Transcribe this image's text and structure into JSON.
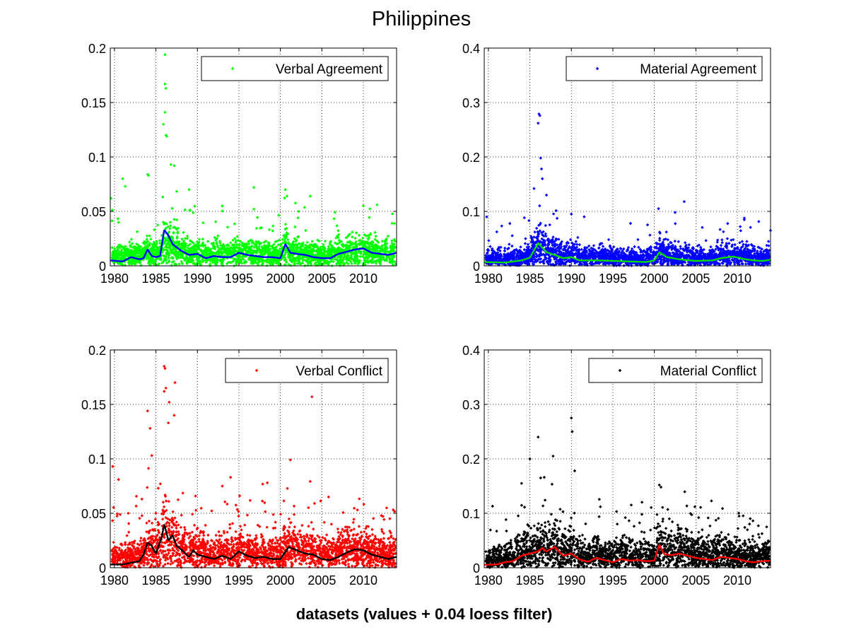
{
  "figure": {
    "title": "Philippines",
    "xlabel": "datasets (values + 0.04 loess filter)"
  },
  "chart_data": [
    {
      "type": "scatter",
      "legend": "Verbal Agreement",
      "legend_location": "top-right",
      "grid": true,
      "xlim": [
        1979.5,
        2014
      ],
      "ylim": [
        0,
        0.2
      ],
      "xticks": [
        "1980",
        "1985",
        "1990",
        "1995",
        "2000",
        "2005",
        "2010"
      ],
      "yticks": [
        "0",
        "0.05",
        "0.1",
        "0.15",
        "0.2"
      ],
      "point_color": "#00ff00",
      "trend_color": "#0000ff",
      "noise": {
        "base": 0.008,
        "spread": 0.012,
        "spike_rate": 0.03,
        "spike_scale": 0.035
      },
      "trend": [
        [
          1979.5,
          0.005
        ],
        [
          1981,
          0.004
        ],
        [
          1982,
          0.008
        ],
        [
          1983,
          0.006
        ],
        [
          1983.5,
          0.007
        ],
        [
          1984,
          0.015
        ],
        [
          1984.5,
          0.009
        ],
        [
          1985,
          0.008
        ],
        [
          1985.5,
          0.009
        ],
        [
          1986,
          0.033
        ],
        [
          1986.5,
          0.028
        ],
        [
          1987,
          0.02
        ],
        [
          1988,
          0.014
        ],
        [
          1989,
          0.01
        ],
        [
          1990,
          0.011
        ],
        [
          1991,
          0.007
        ],
        [
          1992,
          0.009
        ],
        [
          1993,
          0.008
        ],
        [
          1994,
          0.008
        ],
        [
          1995,
          0.012
        ],
        [
          1996,
          0.01
        ],
        [
          1997,
          0.009
        ],
        [
          1998,
          0.008
        ],
        [
          1999,
          0.008
        ],
        [
          2000,
          0.007
        ],
        [
          2000.6,
          0.02
        ],
        [
          2001.2,
          0.012
        ],
        [
          2002,
          0.011
        ],
        [
          2003,
          0.01
        ],
        [
          2004,
          0.008
        ],
        [
          2005,
          0.007
        ],
        [
          2006,
          0.007
        ],
        [
          2007,
          0.011
        ],
        [
          2008,
          0.013
        ],
        [
          2009,
          0.015
        ],
        [
          2010,
          0.016
        ],
        [
          2011,
          0.012
        ],
        [
          2012,
          0.011
        ],
        [
          2013,
          0.01
        ],
        [
          2014,
          0.012
        ]
      ],
      "outliers": [
        [
          1986.1,
          0.194
        ],
        [
          1986.1,
          0.167
        ],
        [
          1986.2,
          0.163
        ],
        [
          1986.1,
          0.141
        ],
        [
          1986.2,
          0.12
        ],
        [
          1986.3,
          0.119
        ],
        [
          1985.9,
          0.13
        ],
        [
          1986.8,
          0.093
        ],
        [
          1987.2,
          0.092
        ],
        [
          1984.0,
          0.084
        ],
        [
          1984.1,
          0.083
        ],
        [
          1981.0,
          0.08
        ],
        [
          1981.3,
          0.073
        ],
        [
          1989.0,
          0.07
        ],
        [
          1996.8,
          0.072
        ],
        [
          2000.6,
          0.07
        ],
        [
          2003.6,
          0.064
        ],
        [
          2010.0,
          0.055
        ],
        [
          1979.6,
          0.062
        ],
        [
          1993.0,
          0.055
        ],
        [
          2000.8,
          0.064
        ]
      ]
    },
    {
      "type": "scatter",
      "legend": "Material Agreement",
      "legend_location": "top-right",
      "grid": true,
      "xlim": [
        1979.5,
        2014
      ],
      "ylim": [
        0,
        0.4
      ],
      "xticks": [
        "1980",
        "1985",
        "1990",
        "1995",
        "2000",
        "2005",
        "2010"
      ],
      "yticks": [
        "0",
        "0.1",
        "0.2",
        "0.3",
        "0.4"
      ],
      "point_color": "#0000ff",
      "trend_color": "#00dd00",
      "noise": {
        "base": 0.01,
        "spread": 0.025,
        "spike_rate": 0.03,
        "spike_scale": 0.05
      },
      "trend": [
        [
          1979.5,
          0.007
        ],
        [
          1982,
          0.006
        ],
        [
          1984,
          0.01
        ],
        [
          1985,
          0.015
        ],
        [
          1986,
          0.042
        ],
        [
          1987,
          0.025
        ],
        [
          1988,
          0.02
        ],
        [
          1989,
          0.014
        ],
        [
          1990,
          0.016
        ],
        [
          1991,
          0.01
        ],
        [
          1993,
          0.01
        ],
        [
          1995,
          0.009
        ],
        [
          1997,
          0.008
        ],
        [
          1999,
          0.007
        ],
        [
          2000,
          0.01
        ],
        [
          2000.6,
          0.025
        ],
        [
          2001.5,
          0.016
        ],
        [
          2003,
          0.012
        ],
        [
          2005,
          0.009
        ],
        [
          2007,
          0.01
        ],
        [
          2008,
          0.014
        ],
        [
          2009.5,
          0.017
        ],
        [
          2011,
          0.012
        ],
        [
          2012,
          0.01
        ],
        [
          2013,
          0.009
        ],
        [
          2014,
          0.011
        ]
      ],
      "outliers": [
        [
          1986.1,
          0.279
        ],
        [
          1986.2,
          0.276
        ],
        [
          1986.0,
          0.262
        ],
        [
          1986.3,
          0.198
        ],
        [
          1986.4,
          0.178
        ],
        [
          1986.5,
          0.16
        ],
        [
          1985.5,
          0.142
        ],
        [
          1987.0,
          0.13
        ],
        [
          1990.0,
          0.095
        ],
        [
          2000.5,
          0.105
        ],
        [
          2002.5,
          0.098
        ],
        [
          2003.6,
          0.118
        ],
        [
          2014,
          0.065
        ],
        [
          1979.8,
          0.09
        ]
      ]
    },
    {
      "type": "scatter",
      "legend": "Verbal Conflict",
      "legend_location": "top-right",
      "grid": true,
      "xlim": [
        1979.5,
        2014
      ],
      "ylim": [
        0,
        0.2
      ],
      "xticks": [
        "1980",
        "1985",
        "1990",
        "1995",
        "2000",
        "2005",
        "2010"
      ],
      "yticks": [
        "0",
        "0.05",
        "0.1",
        "0.15",
        "0.2"
      ],
      "point_color": "#ff0000",
      "trend_color": "#000000",
      "noise": {
        "base": 0.01,
        "spread": 0.018,
        "spike_rate": 0.05,
        "spike_scale": 0.04
      },
      "trend": [
        [
          1979.5,
          0.003
        ],
        [
          1981,
          0.003
        ],
        [
          1983,
          0.006
        ],
        [
          1983.5,
          0.012
        ],
        [
          1984,
          0.023
        ],
        [
          1984.5,
          0.02
        ],
        [
          1985,
          0.013
        ],
        [
          1985.7,
          0.028
        ],
        [
          1986,
          0.04
        ],
        [
          1986.5,
          0.025
        ],
        [
          1987,
          0.03
        ],
        [
          1987.5,
          0.02
        ],
        [
          1988,
          0.017
        ],
        [
          1989,
          0.01
        ],
        [
          1989.5,
          0.016
        ],
        [
          1990,
          0.012
        ],
        [
          1991,
          0.01
        ],
        [
          1992,
          0.008
        ],
        [
          1993,
          0.011
        ],
        [
          1994,
          0.008
        ],
        [
          1995,
          0.015
        ],
        [
          1996,
          0.011
        ],
        [
          1997,
          0.009
        ],
        [
          1998,
          0.01
        ],
        [
          1999,
          0.008
        ],
        [
          2000,
          0.008
        ],
        [
          2001,
          0.019
        ],
        [
          2002,
          0.016
        ],
        [
          2003,
          0.013
        ],
        [
          2004,
          0.012
        ],
        [
          2005,
          0.008
        ],
        [
          2006,
          0.007
        ],
        [
          2007,
          0.01
        ],
        [
          2008,
          0.014
        ],
        [
          2009,
          0.017
        ],
        [
          2010,
          0.016
        ],
        [
          2011,
          0.012
        ],
        [
          2012,
          0.01
        ],
        [
          2013,
          0.008
        ],
        [
          2014,
          0.01
        ]
      ],
      "outliers": [
        [
          1986.0,
          0.185
        ],
        [
          1986.1,
          0.183
        ],
        [
          1986.2,
          0.165
        ],
        [
          1986.0,
          0.162
        ],
        [
          1987.3,
          0.17
        ],
        [
          1986.6,
          0.152
        ],
        [
          1984.0,
          0.144
        ],
        [
          1984.3,
          0.128
        ],
        [
          1986.5,
          0.133
        ],
        [
          1987.2,
          0.14
        ],
        [
          1984.5,
          0.103
        ],
        [
          2003.8,
          0.157
        ],
        [
          2001.2,
          0.099
        ],
        [
          1979.8,
          0.093
        ],
        [
          1980.5,
          0.081
        ],
        [
          1994.0,
          0.083
        ],
        [
          1993.0,
          0.075
        ]
      ]
    },
    {
      "type": "scatter",
      "legend": "Material Conflict",
      "legend_location": "top-right",
      "grid": true,
      "xlim": [
        1979.5,
        2014
      ],
      "ylim": [
        0,
        0.4
      ],
      "xticks": [
        "1980",
        "1985",
        "1990",
        "1995",
        "2000",
        "2005",
        "2010"
      ],
      "yticks": [
        "0",
        "0.1",
        "0.2",
        "0.3",
        "0.4"
      ],
      "point_color": "#000000",
      "trend_color": "#ff0000",
      "noise": {
        "base": 0.012,
        "spread": 0.035,
        "spike_rate": 0.04,
        "spike_scale": 0.06
      },
      "trend": [
        [
          1979.5,
          0.005
        ],
        [
          1981,
          0.006
        ],
        [
          1982,
          0.01
        ],
        [
          1983,
          0.012
        ],
        [
          1984,
          0.022
        ],
        [
          1985,
          0.026
        ],
        [
          1986,
          0.03
        ],
        [
          1986.5,
          0.036
        ],
        [
          1987,
          0.03
        ],
        [
          1988,
          0.038
        ],
        [
          1989,
          0.022
        ],
        [
          1990,
          0.026
        ],
        [
          1991,
          0.015
        ],
        [
          1992,
          0.011
        ],
        [
          1993,
          0.018
        ],
        [
          1994,
          0.014
        ],
        [
          1995,
          0.01
        ],
        [
          1996,
          0.016
        ],
        [
          1997,
          0.013
        ],
        [
          1998,
          0.014
        ],
        [
          1999,
          0.012
        ],
        [
          2000,
          0.013
        ],
        [
          2000.6,
          0.042
        ],
        [
          2001.2,
          0.025
        ],
        [
          2002,
          0.023
        ],
        [
          2003,
          0.026
        ],
        [
          2004,
          0.022
        ],
        [
          2005,
          0.018
        ],
        [
          2006,
          0.016
        ],
        [
          2007,
          0.014
        ],
        [
          2008,
          0.02
        ],
        [
          2009,
          0.018
        ],
        [
          2010,
          0.016
        ],
        [
          2011,
          0.012
        ],
        [
          2012,
          0.01
        ],
        [
          2013,
          0.012
        ],
        [
          2014,
          0.013
        ]
      ],
      "outliers": [
        [
          1990.0,
          0.275
        ],
        [
          1990.1,
          0.25
        ],
        [
          1986.0,
          0.24
        ],
        [
          1987.8,
          0.205
        ],
        [
          1985.0,
          0.2
        ],
        [
          1990.4,
          0.178
        ],
        [
          1986.3,
          0.165
        ],
        [
          1984.0,
          0.155
        ],
        [
          2000.6,
          0.152
        ],
        [
          2000.8,
          0.148
        ],
        [
          1980.5,
          0.113
        ],
        [
          1993.5,
          0.112
        ],
        [
          1998.5,
          0.098
        ]
      ]
    }
  ]
}
